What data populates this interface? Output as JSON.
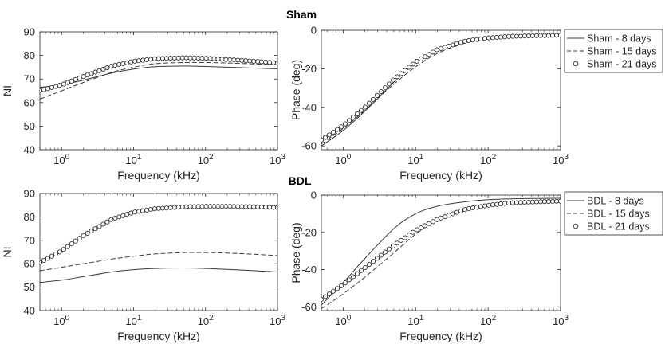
{
  "titles": {
    "top": "Sham",
    "bottom": "BDL"
  },
  "legends": {
    "top": [
      "Sham - 8 days",
      "Sham - 15 days",
      "Sham - 21 days"
    ],
    "bottom": [
      "BDL - 8 days",
      "BDL - 15 days",
      "BDL - 21 days"
    ]
  },
  "chart_data": [
    {
      "type": "line",
      "title": "Sham",
      "xlabel": "Frequency (kHz)",
      "ylabel": "NI",
      "xscale": "log",
      "xlim": [
        0.5,
        1000
      ],
      "ylim": [
        40,
        90
      ],
      "xticks": [
        1,
        10,
        100,
        1000
      ],
      "xtick_labels": [
        "10^0",
        "10^1",
        "10^2",
        "10^3"
      ],
      "yticks": [
        40,
        50,
        60,
        70,
        80,
        90
      ],
      "series": [
        {
          "name": "Sham - 8 days",
          "style": "solid",
          "x": [
            0.5,
            1,
            2,
            5,
            10,
            20,
            50,
            100,
            200,
            500,
            1000
          ],
          "values": [
            66.5,
            67.5,
            69.5,
            72.5,
            74.2,
            75.2,
            75.5,
            75.3,
            75.0,
            74.6,
            74.3
          ]
        },
        {
          "name": "Sham - 15 days",
          "style": "dashed",
          "x": [
            0.5,
            1,
            2,
            5,
            10,
            20,
            50,
            100,
            200,
            500,
            1000
          ],
          "values": [
            61.5,
            65.0,
            68.5,
            72.8,
            75.0,
            76.5,
            77.0,
            77.0,
            76.8,
            76.4,
            76.0
          ]
        },
        {
          "name": "Sham - 21 days",
          "style": "circles",
          "x": [
            0.5,
            1,
            2,
            5,
            10,
            20,
            50,
            100,
            200,
            500,
            1000
          ],
          "values": [
            65.0,
            67.5,
            71.0,
            75.5,
            77.5,
            78.6,
            79.0,
            78.8,
            78.3,
            77.5,
            76.8
          ]
        }
      ]
    },
    {
      "type": "line",
      "title": "",
      "xlabel": "Frequency (kHz)",
      "ylabel": "Phase (deg)",
      "xscale": "log",
      "xlim": [
        0.5,
        1000
      ],
      "ylim": [
        -62,
        0
      ],
      "xticks": [
        1,
        10,
        100,
        1000
      ],
      "xtick_labels": [
        "10^0",
        "10^1",
        "10^2",
        "10^3"
      ],
      "yticks": [
        -60,
        -40,
        -20,
        0
      ],
      "series": [
        {
          "name": "Sham - 8 days",
          "style": "solid",
          "x": [
            0.5,
            1,
            2,
            5,
            10,
            20,
            50,
            100,
            200,
            500,
            1000
          ],
          "values": [
            -60.0,
            -52.0,
            -42.0,
            -27.0,
            -17.0,
            -10.5,
            -5.5,
            -4.0,
            -3.2,
            -2.8,
            -2.6
          ]
        },
        {
          "name": "Sham - 15 days",
          "style": "dashed",
          "x": [
            0.5,
            1,
            2,
            5,
            10,
            20,
            50,
            100,
            200,
            500,
            1000
          ],
          "values": [
            -59.0,
            -51.0,
            -41.5,
            -28.0,
            -19.0,
            -12.0,
            -6.5,
            -4.5,
            -3.5,
            -3.0,
            -2.8
          ]
        },
        {
          "name": "Sham - 21 days",
          "style": "circles",
          "x": [
            0.5,
            1,
            2,
            5,
            10,
            20,
            50,
            100,
            200,
            500,
            1000
          ],
          "values": [
            -57.0,
            -49.5,
            -40.0,
            -25.5,
            -16.5,
            -10.0,
            -5.5,
            -4.0,
            -3.2,
            -2.8,
            -2.6
          ]
        }
      ]
    },
    {
      "type": "line",
      "title": "BDL",
      "xlabel": "Frequency (kHz)",
      "ylabel": "NI",
      "xscale": "log",
      "xlim": [
        0.5,
        1000
      ],
      "ylim": [
        40,
        90
      ],
      "xticks": [
        1,
        10,
        100,
        1000
      ],
      "xtick_labels": [
        "10^0",
        "10^1",
        "10^2",
        "10^3"
      ],
      "yticks": [
        40,
        50,
        60,
        70,
        80,
        90
      ],
      "series": [
        {
          "name": "BDL - 8 days",
          "style": "solid",
          "x": [
            0.5,
            1,
            2,
            5,
            10,
            20,
            50,
            100,
            200,
            500,
            1000
          ],
          "values": [
            52.0,
            53.0,
            54.5,
            56.5,
            57.5,
            58.0,
            58.2,
            58.0,
            57.6,
            57.0,
            56.5
          ]
        },
        {
          "name": "BDL - 15 days",
          "style": "dashed",
          "x": [
            0.5,
            1,
            2,
            5,
            10,
            20,
            50,
            100,
            200,
            500,
            1000
          ],
          "values": [
            57.0,
            58.5,
            60.0,
            62.0,
            63.2,
            64.2,
            64.8,
            64.8,
            64.6,
            64.0,
            63.5
          ]
        },
        {
          "name": "BDL - 21 days",
          "style": "circles",
          "x": [
            0.5,
            1,
            2,
            5,
            10,
            20,
            50,
            100,
            200,
            500,
            1000
          ],
          "values": [
            60.5,
            65.5,
            72.0,
            79.0,
            82.0,
            83.5,
            84.3,
            84.5,
            84.5,
            84.3,
            84.0
          ]
        }
      ]
    },
    {
      "type": "line",
      "title": "",
      "xlabel": "Frequency (kHz)",
      "ylabel": "Phase (deg)",
      "xscale": "log",
      "xlim": [
        0.5,
        1000
      ],
      "ylim": [
        -62,
        0
      ],
      "xticks": [
        1,
        10,
        100,
        1000
      ],
      "xtick_labels": [
        "10^0",
        "10^1",
        "10^2",
        "10^3"
      ],
      "yticks": [
        -60,
        -40,
        -20,
        0
      ],
      "series": [
        {
          "name": "BDL - 8 days",
          "style": "solid",
          "x": [
            0.5,
            1,
            2,
            5,
            10,
            20,
            50,
            100,
            200,
            500,
            1000
          ],
          "values": [
            -59.0,
            -47.0,
            -34.0,
            -18.0,
            -10.0,
            -6.0,
            -3.5,
            -2.5,
            -2.0,
            -1.8,
            -1.7
          ]
        },
        {
          "name": "BDL - 15 days",
          "style": "dashed",
          "x": [
            0.5,
            1,
            2,
            5,
            10,
            20,
            50,
            100,
            200,
            500,
            1000
          ],
          "values": [
            -61.0,
            -53.0,
            -44.0,
            -31.0,
            -21.0,
            -13.5,
            -7.0,
            -5.0,
            -3.8,
            -3.3,
            -3.0
          ]
        },
        {
          "name": "BDL - 21 days",
          "style": "circles",
          "x": [
            0.5,
            1,
            2,
            5,
            10,
            20,
            50,
            100,
            200,
            500,
            1000
          ],
          "values": [
            -56.0,
            -48.0,
            -39.0,
            -27.0,
            -19.0,
            -13.0,
            -7.5,
            -5.5,
            -4.2,
            -3.6,
            -3.3
          ]
        }
      ]
    }
  ]
}
